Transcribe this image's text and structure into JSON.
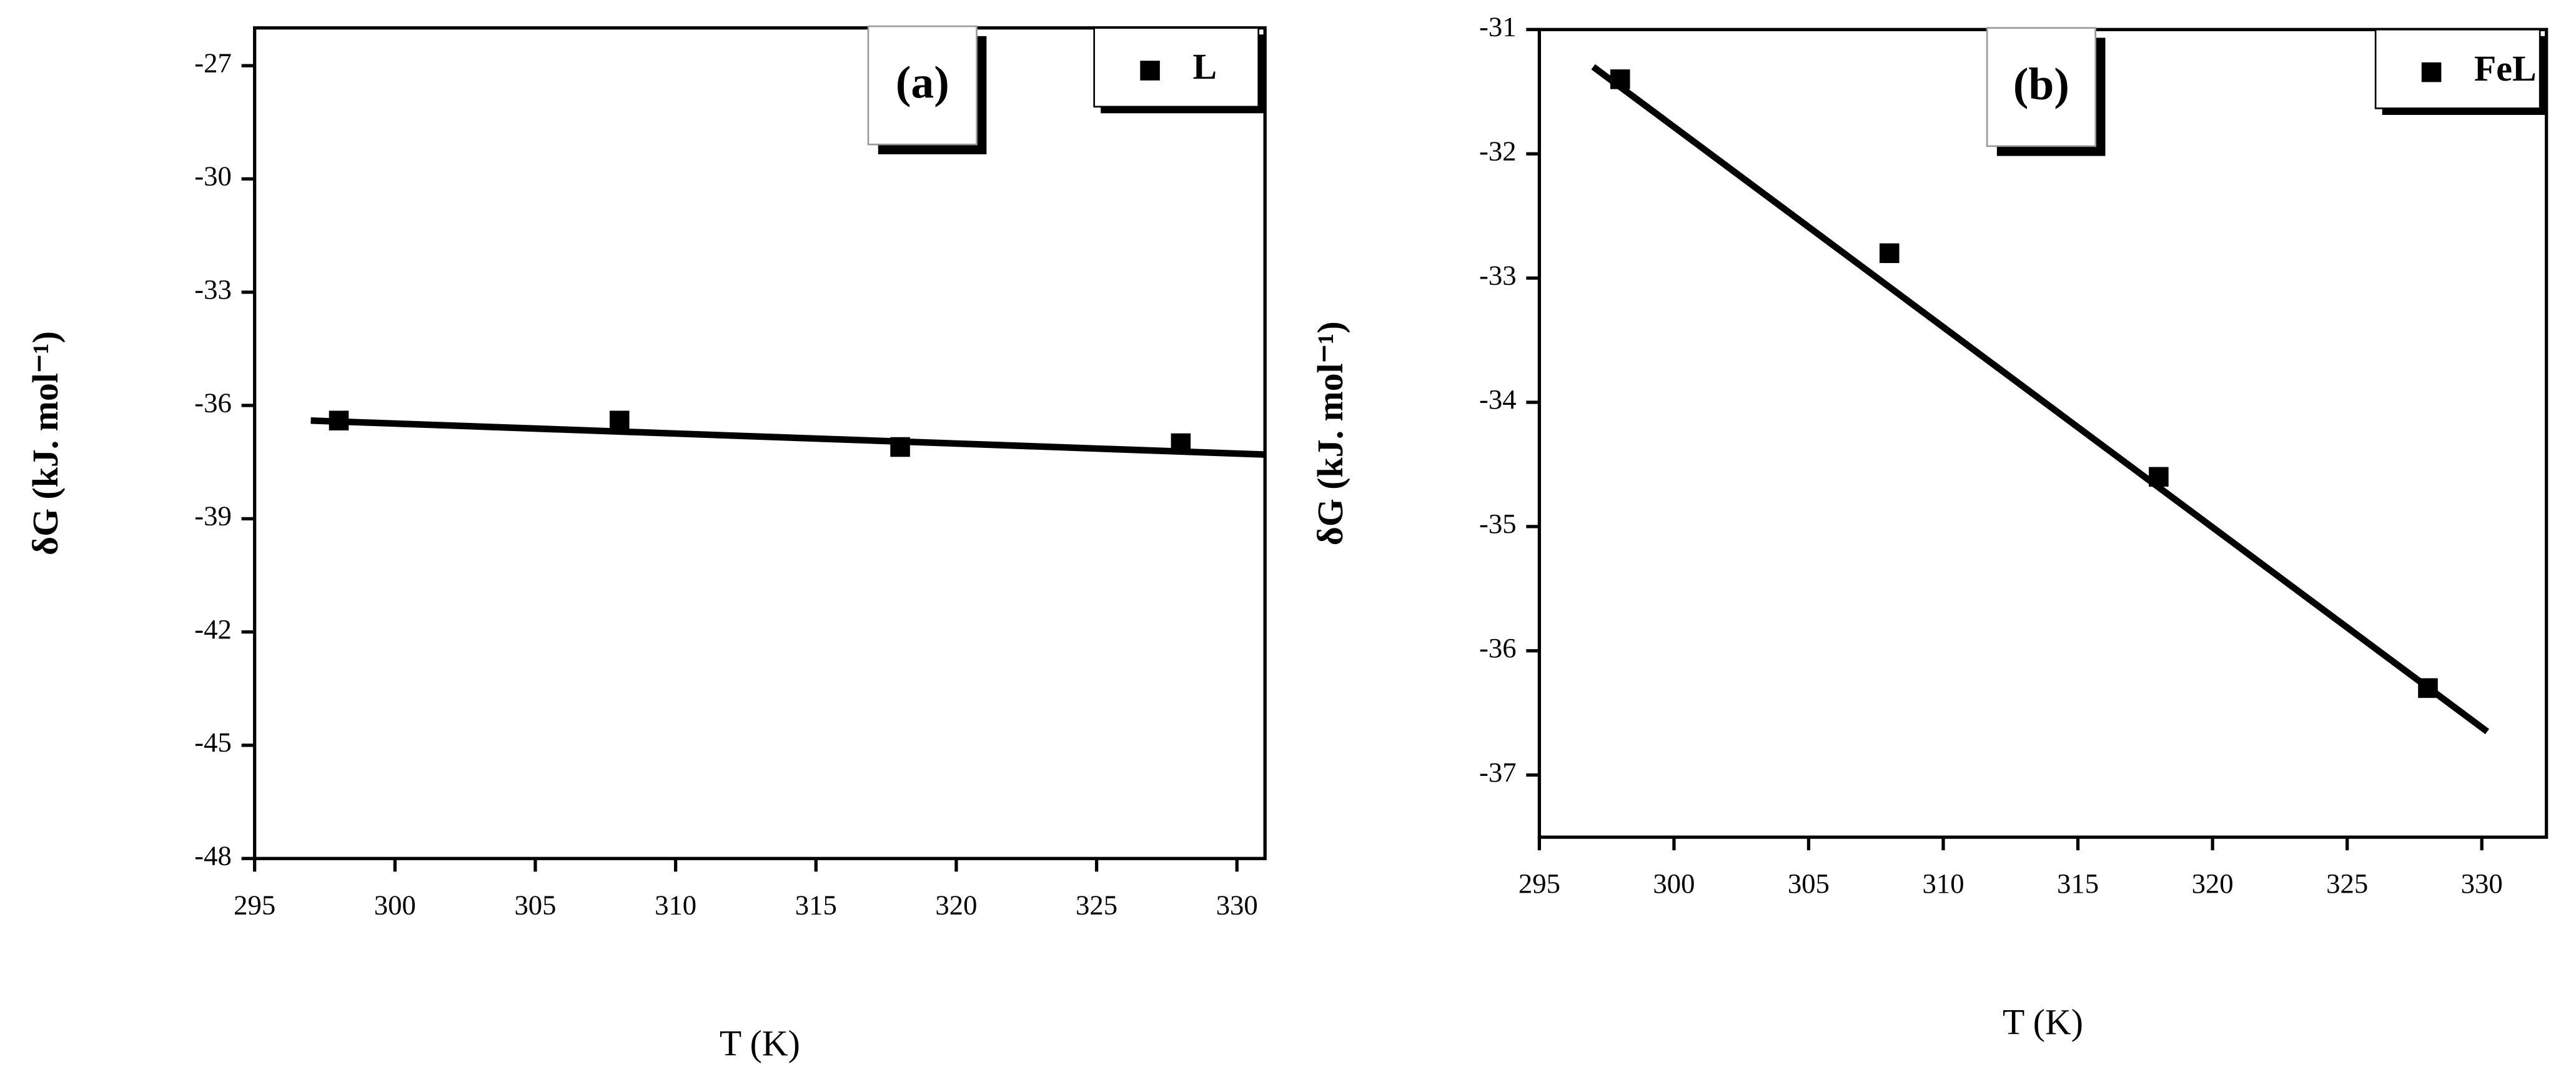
{
  "chart_data": [
    {
      "type": "scatter",
      "panel_label": "(a)",
      "x_label": "T (K)",
      "y_label": "δG (kJ. mol⁻¹)",
      "series": [
        {
          "name": "L",
          "color": "#000000",
          "x": [
            298,
            308,
            318,
            328
          ],
          "values": [
            -36.4,
            -36.4,
            -37.1,
            -37.0
          ]
        }
      ],
      "fit": {
        "x": [
          297,
          331
        ],
        "values": [
          -36.4,
          -37.3
        ]
      },
      "xlim": [
        295,
        331
      ],
      "ylim": [
        -48,
        -26
      ],
      "xticks": [
        295,
        300,
        305,
        310,
        315,
        320,
        325,
        330
      ],
      "yticks": [
        -48,
        -45,
        -42,
        -39,
        -36,
        -33,
        -30,
        -27
      ]
    },
    {
      "type": "scatter",
      "panel_label": "(b)",
      "x_label": "T (K)",
      "y_label": "δG (kJ. mol⁻¹)",
      "series": [
        {
          "name": "FeL",
          "color": "#000000",
          "x": [
            298,
            308,
            318,
            328
          ],
          "values": [
            -31.4,
            -32.8,
            -34.6,
            -36.3
          ]
        }
      ],
      "fit": {
        "x": [
          297,
          330.2
        ],
        "values": [
          -31.3,
          -36.65
        ]
      },
      "xlim": [
        295,
        332.4
      ],
      "ylim": [
        -37.5,
        -31
      ],
      "xticks": [
        295,
        300,
        305,
        310,
        315,
        320,
        325,
        330
      ],
      "yticks": [
        -37,
        -36,
        -35,
        -34,
        -33,
        -32,
        -31
      ]
    }
  ]
}
